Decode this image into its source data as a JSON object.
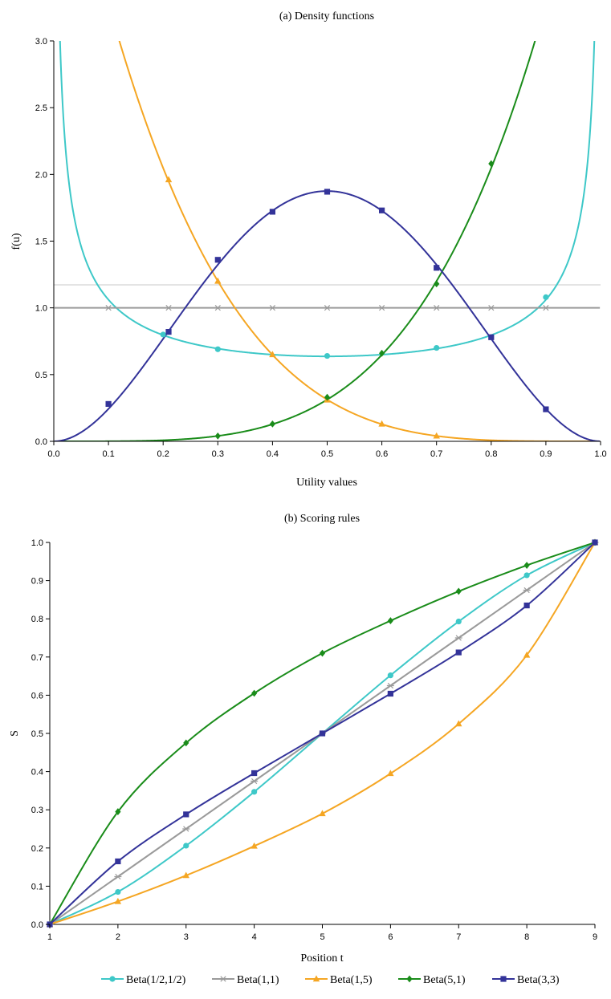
{
  "chart_data": [
    {
      "type": "line",
      "title": "(a) Density functions",
      "xlabel": "Utility values",
      "ylabel": "f(u)",
      "xlim": [
        0,
        1
      ],
      "ylim": [
        0,
        3
      ],
      "x_ticks": [
        "0.0",
        "0.1",
        "0.2",
        "0.3",
        "0.4",
        "0.5",
        "0.6",
        "0.7",
        "0.8",
        "0.9",
        "1.0"
      ],
      "y_ticks": [
        "0.0",
        "0.5",
        "1.0",
        "1.5",
        "2.0",
        "2.5",
        "3.0"
      ],
      "grid": false,
      "series": [
        {
          "name": "Beta(1/2,1/2)",
          "color": "#3ec8c8",
          "marker": "circle",
          "markers": [
            {
              "x": 0.2,
              "y": 0.8
            },
            {
              "x": 0.3,
              "y": 0.69
            },
            {
              "x": 0.5,
              "y": 0.64
            },
            {
              "x": 0.7,
              "y": 0.7
            },
            {
              "x": 0.9,
              "y": 1.08
            }
          ]
        },
        {
          "name": "Beta(1,1)",
          "color": "#9a9a9a",
          "marker": "star",
          "markers": [
            {
              "x": 0.1,
              "y": 1.0
            },
            {
              "x": 0.21,
              "y": 1.0
            },
            {
              "x": 0.3,
              "y": 1.0
            },
            {
              "x": 0.4,
              "y": 1.0
            },
            {
              "x": 0.5,
              "y": 1.0
            },
            {
              "x": 0.6,
              "y": 1.0
            },
            {
              "x": 0.7,
              "y": 1.0
            },
            {
              "x": 0.8,
              "y": 1.0
            },
            {
              "x": 0.9,
              "y": 1.0
            }
          ]
        },
        {
          "name": "Beta(1,5)",
          "color": "#f5a623",
          "marker": "triangle",
          "markers": [
            {
              "x": 0.21,
              "y": 1.96
            },
            {
              "x": 0.3,
              "y": 1.2
            },
            {
              "x": 0.4,
              "y": 0.65
            },
            {
              "x": 0.5,
              "y": 0.31
            },
            {
              "x": 0.6,
              "y": 0.13
            },
            {
              "x": 0.7,
              "y": 0.04
            }
          ]
        },
        {
          "name": "Beta(5,1)",
          "color": "#1a8c1a",
          "marker": "diamond",
          "markers": [
            {
              "x": 0.3,
              "y": 0.04
            },
            {
              "x": 0.4,
              "y": 0.13
            },
            {
              "x": 0.5,
              "y": 0.33
            },
            {
              "x": 0.6,
              "y": 0.66
            },
            {
              "x": 0.7,
              "y": 1.18
            },
            {
              "x": 0.8,
              "y": 2.08
            }
          ]
        },
        {
          "name": "Beta(3,3)",
          "color": "#333399",
          "marker": "square",
          "markers": [
            {
              "x": 0.1,
              "y": 0.28
            },
            {
              "x": 0.21,
              "y": 0.82
            },
            {
              "x": 0.3,
              "y": 1.36
            },
            {
              "x": 0.4,
              "y": 1.72
            },
            {
              "x": 0.5,
              "y": 1.87
            },
            {
              "x": 0.6,
              "y": 1.73
            },
            {
              "x": 0.7,
              "y": 1.3
            },
            {
              "x": 0.8,
              "y": 0.78
            },
            {
              "x": 0.9,
              "y": 0.24
            }
          ]
        }
      ]
    },
    {
      "type": "line",
      "title": "(b) Scoring rules",
      "xlabel": "Position t",
      "ylabel": "S",
      "xlim": [
        1,
        9
      ],
      "ylim": [
        0,
        1
      ],
      "x_ticks": [
        "1",
        "2",
        "3",
        "4",
        "5",
        "6",
        "7",
        "8",
        "9"
      ],
      "y_ticks": [
        "0.0",
        "0.1",
        "0.2",
        "0.3",
        "0.4",
        "0.5",
        "0.6",
        "0.7",
        "0.8",
        "0.9",
        "1.0"
      ],
      "grid": false,
      "x": [
        1,
        2,
        3,
        4,
        5,
        6,
        7,
        8,
        9
      ],
      "series": [
        {
          "name": "Beta(1/2,1/2)",
          "color": "#3ec8c8",
          "marker": "circle",
          "values": [
            0.0,
            0.085,
            0.206,
            0.347,
            0.5,
            0.652,
            0.793,
            0.914,
            1.0
          ]
        },
        {
          "name": "Beta(1,1)",
          "color": "#9a9a9a",
          "marker": "star",
          "values": [
            0.0,
            0.125,
            0.25,
            0.375,
            0.5,
            0.625,
            0.75,
            0.875,
            1.0
          ]
        },
        {
          "name": "Beta(1,5)",
          "color": "#f5a623",
          "marker": "triangle",
          "values": [
            0.0,
            0.06,
            0.128,
            0.205,
            0.29,
            0.395,
            0.525,
            0.705,
            1.0
          ]
        },
        {
          "name": "Beta(5,1)",
          "color": "#1a8c1a",
          "marker": "diamond",
          "values": [
            0.0,
            0.295,
            0.475,
            0.605,
            0.71,
            0.795,
            0.872,
            0.94,
            1.0
          ]
        },
        {
          "name": "Beta(3,3)",
          "color": "#333399",
          "marker": "square",
          "values": [
            0.0,
            0.165,
            0.288,
            0.396,
            0.5,
            0.604,
            0.712,
            0.835,
            1.0
          ]
        }
      ]
    }
  ],
  "legend": {
    "placement": "bottom",
    "items": [
      "Beta(1/2,1/2)",
      "Beta(1,1)",
      "Beta(1,5)",
      "Beta(5,1)",
      "Beta(3,3)"
    ]
  }
}
